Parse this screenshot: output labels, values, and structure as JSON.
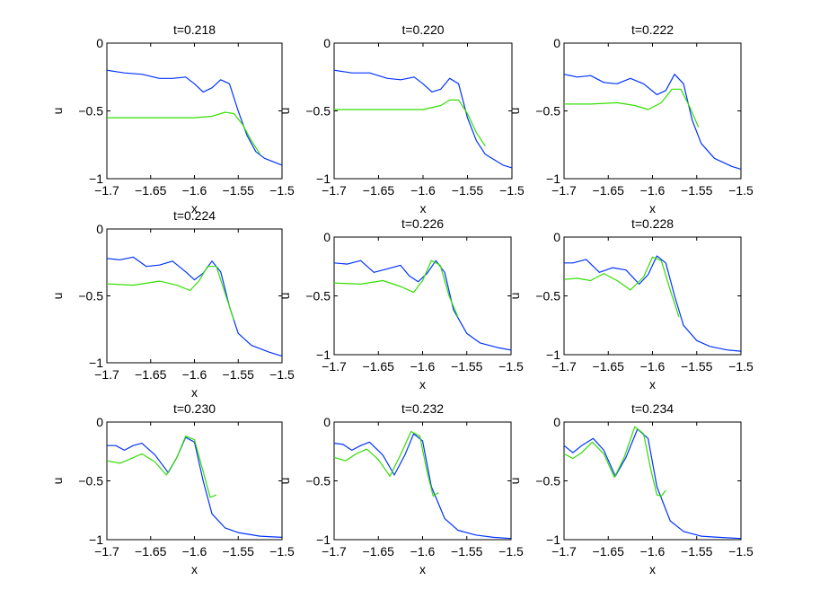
{
  "chart_data": [
    {
      "type": "line",
      "title": "t=0.218",
      "xlabel": "x",
      "ylabel": "u",
      "xlim": [
        -1.7,
        -1.5
      ],
      "ylim": [
        -1,
        0
      ],
      "xticks": [
        "-1.7",
        "-1.65",
        "-1.6",
        "-1.55",
        "-1.5"
      ],
      "yticks": [
        "0",
        "-0.5",
        "-1"
      ],
      "series": [
        {
          "color": "#0033ff",
          "x": [
            -1.7,
            -1.68,
            -1.66,
            -1.64,
            -1.625,
            -1.61,
            -1.6,
            -1.59,
            -1.58,
            -1.57,
            -1.56,
            -1.55,
            -1.54,
            -1.53,
            -1.52,
            -1.5
          ],
          "y": [
            -0.2,
            -0.22,
            -0.23,
            -0.26,
            -0.26,
            -0.25,
            -0.3,
            -0.36,
            -0.33,
            -0.27,
            -0.3,
            -0.5,
            -0.68,
            -0.8,
            -0.85,
            -0.9
          ]
        },
        {
          "color": "#33dd00",
          "x": [
            -1.7,
            -1.65,
            -1.6,
            -1.58,
            -1.565,
            -1.555,
            -1.545,
            -1.535,
            -1.525
          ],
          "y": [
            -0.55,
            -0.55,
            -0.55,
            -0.54,
            -0.51,
            -0.52,
            -0.6,
            -0.72,
            -0.82
          ]
        }
      ]
    },
    {
      "type": "line",
      "title": "t=0.220",
      "xlabel": "x",
      "ylabel": "u",
      "xlim": [
        -1.7,
        -1.5
      ],
      "ylim": [
        -1,
        0
      ],
      "xticks": [
        "-1.7",
        "-1.65",
        "-1.6",
        "-1.55",
        "-1.5"
      ],
      "yticks": [
        "0",
        "-0.5",
        "-1"
      ],
      "series": [
        {
          "color": "#0033ff",
          "x": [
            -1.7,
            -1.68,
            -1.66,
            -1.64,
            -1.625,
            -1.61,
            -1.6,
            -1.59,
            -1.58,
            -1.57,
            -1.56,
            -1.55,
            -1.54,
            -1.53,
            -1.51,
            -1.5
          ],
          "y": [
            -0.2,
            -0.22,
            -0.22,
            -0.26,
            -0.27,
            -0.25,
            -0.3,
            -0.36,
            -0.34,
            -0.26,
            -0.3,
            -0.55,
            -0.72,
            -0.82,
            -0.9,
            -0.92
          ]
        },
        {
          "color": "#33dd00",
          "x": [
            -1.7,
            -1.65,
            -1.6,
            -1.58,
            -1.57,
            -1.56,
            -1.55,
            -1.54,
            -1.53
          ],
          "y": [
            -0.49,
            -0.49,
            -0.49,
            -0.46,
            -0.42,
            -0.42,
            -0.52,
            -0.66,
            -0.76
          ]
        }
      ]
    },
    {
      "type": "line",
      "title": "t=0.222",
      "xlabel": "x",
      "ylabel": "u",
      "xlim": [
        -1.7,
        -1.5
      ],
      "ylim": [
        -1,
        0
      ],
      "xticks": [
        "-1.7",
        "-1.65",
        "-1.6",
        "-1.55",
        "-1.5"
      ],
      "yticks": [
        "0",
        "-0.5",
        "-1"
      ],
      "series": [
        {
          "color": "#0033ff",
          "x": [
            -1.7,
            -1.685,
            -1.67,
            -1.655,
            -1.64,
            -1.625,
            -1.61,
            -1.595,
            -1.585,
            -1.575,
            -1.565,
            -1.555,
            -1.545,
            -1.53,
            -1.51,
            -1.5
          ],
          "y": [
            -0.23,
            -0.25,
            -0.24,
            -0.29,
            -0.3,
            -0.26,
            -0.3,
            -0.38,
            -0.35,
            -0.23,
            -0.3,
            -0.57,
            -0.74,
            -0.85,
            -0.91,
            -0.93
          ]
        },
        {
          "color": "#33dd00",
          "x": [
            -1.7,
            -1.67,
            -1.64,
            -1.62,
            -1.605,
            -1.59,
            -1.578,
            -1.568,
            -1.558,
            -1.548
          ],
          "y": [
            -0.45,
            -0.45,
            -0.44,
            -0.46,
            -0.49,
            -0.44,
            -0.34,
            -0.34,
            -0.47,
            -0.62
          ]
        }
      ]
    },
    {
      "type": "line",
      "title": "t=0.224",
      "xlabel": "x",
      "ylabel": "u",
      "xlim": [
        -1.7,
        -1.5
      ],
      "ylim": [
        -1,
        0
      ],
      "xticks": [
        "-1.7",
        "-1.65",
        "-1.6",
        "-1.55",
        "-1.5"
      ],
      "yticks": [
        "0",
        "-0.5",
        "-1"
      ],
      "series": [
        {
          "color": "#0033ff",
          "x": [
            -1.7,
            -1.685,
            -1.67,
            -1.655,
            -1.64,
            -1.625,
            -1.61,
            -1.6,
            -1.59,
            -1.58,
            -1.57,
            -1.56,
            -1.55,
            -1.535,
            -1.515,
            -1.5
          ],
          "y": [
            -0.22,
            -0.23,
            -0.21,
            -0.28,
            -0.27,
            -0.24,
            -0.32,
            -0.38,
            -0.33,
            -0.24,
            -0.32,
            -0.58,
            -0.78,
            -0.87,
            -0.92,
            -0.95
          ]
        },
        {
          "color": "#33dd00",
          "x": [
            -1.7,
            -1.67,
            -1.64,
            -1.62,
            -1.605,
            -1.595,
            -1.585,
            -1.575,
            -1.565,
            -1.555
          ],
          "y": [
            -0.41,
            -0.42,
            -0.39,
            -0.42,
            -0.46,
            -0.39,
            -0.28,
            -0.28,
            -0.48,
            -0.68
          ]
        }
      ]
    },
    {
      "type": "line",
      "title": "t=0.226",
      "xlabel": "x",
      "ylabel": "u",
      "xlim": [
        -1.7,
        -1.5
      ],
      "ylim": [
        -1,
        0
      ],
      "xticks": [
        "-1.7",
        "-1.65",
        "-1.6",
        "-1.55",
        "-1.5"
      ],
      "yticks": [
        "0",
        "-0.5",
        "-1"
      ],
      "series": [
        {
          "color": "#0033ff",
          "x": [
            -1.7,
            -1.685,
            -1.67,
            -1.655,
            -1.64,
            -1.625,
            -1.615,
            -1.605,
            -1.595,
            -1.585,
            -1.575,
            -1.565,
            -1.55,
            -1.535,
            -1.515,
            -1.5
          ],
          "y": [
            -0.22,
            -0.23,
            -0.2,
            -0.3,
            -0.27,
            -0.24,
            -0.33,
            -0.38,
            -0.31,
            -0.2,
            -0.3,
            -0.62,
            -0.82,
            -0.9,
            -0.94,
            -0.96
          ]
        },
        {
          "color": "#33dd00",
          "x": [
            -1.7,
            -1.67,
            -1.645,
            -1.625,
            -1.61,
            -1.6,
            -1.59,
            -1.58,
            -1.57,
            -1.56
          ],
          "y": [
            -0.39,
            -0.4,
            -0.37,
            -0.42,
            -0.47,
            -0.37,
            -0.2,
            -0.24,
            -0.5,
            -0.68
          ]
        }
      ]
    },
    {
      "type": "line",
      "title": "t=0.228",
      "xlabel": "x",
      "ylabel": "u",
      "xlim": [
        -1.7,
        -1.5
      ],
      "ylim": [
        -1,
        0
      ],
      "xticks": [
        "-1.7",
        "-1.65",
        "-1.6",
        "-1.55",
        "-1.5"
      ],
      "yticks": [
        "0",
        "-0.5",
        "-1"
      ],
      "series": [
        {
          "color": "#0033ff",
          "x": [
            -1.7,
            -1.69,
            -1.675,
            -1.66,
            -1.645,
            -1.63,
            -1.615,
            -1.605,
            -1.595,
            -1.585,
            -1.575,
            -1.565,
            -1.55,
            -1.535,
            -1.515,
            -1.5
          ],
          "y": [
            -0.22,
            -0.22,
            -0.19,
            -0.3,
            -0.26,
            -0.28,
            -0.4,
            -0.32,
            -0.16,
            -0.22,
            -0.5,
            -0.75,
            -0.88,
            -0.93,
            -0.96,
            -0.97
          ]
        },
        {
          "color": "#33dd00",
          "x": [
            -1.7,
            -1.685,
            -1.67,
            -1.655,
            -1.64,
            -1.625,
            -1.61,
            -1.6,
            -1.59,
            -1.58,
            -1.57
          ],
          "y": [
            -0.36,
            -0.35,
            -0.37,
            -0.31,
            -0.37,
            -0.45,
            -0.34,
            -0.17,
            -0.2,
            -0.45,
            -0.68
          ]
        }
      ]
    },
    {
      "type": "line",
      "title": "t=0.230",
      "xlabel": "x",
      "ylabel": "u",
      "xlim": [
        -1.7,
        -1.5
      ],
      "ylim": [
        -1,
        0
      ],
      "xticks": [
        "-1.7",
        "-1.65",
        "-1.6",
        "-1.55",
        "-1.5"
      ],
      "yticks": [
        "0",
        "-0.5",
        "-1"
      ],
      "series": [
        {
          "color": "#0033ff",
          "x": [
            -1.7,
            -1.69,
            -1.68,
            -1.67,
            -1.66,
            -1.645,
            -1.63,
            -1.62,
            -1.61,
            -1.6,
            -1.59,
            -1.58,
            -1.565,
            -1.55,
            -1.525,
            -1.5
          ],
          "y": [
            -0.2,
            -0.2,
            -0.24,
            -0.2,
            -0.18,
            -0.28,
            -0.43,
            -0.3,
            -0.13,
            -0.17,
            -0.5,
            -0.78,
            -0.9,
            -0.94,
            -0.97,
            -0.98
          ]
        },
        {
          "color": "#33dd00",
          "x": [
            -1.7,
            -1.685,
            -1.672,
            -1.66,
            -1.645,
            -1.632,
            -1.62,
            -1.61,
            -1.6,
            -1.59,
            -1.582,
            -1.575
          ],
          "y": [
            -0.33,
            -0.35,
            -0.31,
            -0.27,
            -0.34,
            -0.45,
            -0.3,
            -0.12,
            -0.15,
            -0.42,
            -0.64,
            -0.62
          ]
        }
      ]
    },
    {
      "type": "line",
      "title": "t=0.232",
      "xlabel": "x",
      "ylabel": "u",
      "xlim": [
        -1.7,
        -1.5
      ],
      "ylim": [
        -1,
        0
      ],
      "xticks": [
        "-1.7",
        "-1.65",
        "-1.6",
        "-1.55",
        "-1.5"
      ],
      "yticks": [
        "0",
        "-0.5",
        "-1"
      ],
      "series": [
        {
          "color": "#0033ff",
          "x": [
            -1.7,
            -1.69,
            -1.68,
            -1.67,
            -1.66,
            -1.645,
            -1.632,
            -1.62,
            -1.61,
            -1.6,
            -1.59,
            -1.575,
            -1.56,
            -1.54,
            -1.52,
            -1.5
          ],
          "y": [
            -0.18,
            -0.19,
            -0.24,
            -0.2,
            -0.17,
            -0.28,
            -0.45,
            -0.28,
            -0.1,
            -0.16,
            -0.55,
            -0.82,
            -0.92,
            -0.96,
            -0.98,
            -0.99
          ]
        },
        {
          "color": "#33dd00",
          "x": [
            -1.7,
            -1.687,
            -1.675,
            -1.663,
            -1.65,
            -1.637,
            -1.625,
            -1.613,
            -1.603,
            -1.595,
            -1.588,
            -1.582
          ],
          "y": [
            -0.3,
            -0.33,
            -0.27,
            -0.23,
            -0.32,
            -0.46,
            -0.28,
            -0.08,
            -0.12,
            -0.42,
            -0.63,
            -0.6
          ]
        }
      ]
    },
    {
      "type": "line",
      "title": "t=0.234",
      "xlabel": "x",
      "ylabel": "u",
      "xlim": [
        -1.7,
        -1.5
      ],
      "ylim": [
        -1,
        0
      ],
      "xticks": [
        "-1.7",
        "-1.65",
        "-1.6",
        "-1.55",
        "-1.5"
      ],
      "yticks": [
        "0",
        "-0.5",
        "-1"
      ],
      "series": [
        {
          "color": "#0033ff",
          "x": [
            -1.7,
            -1.69,
            -1.68,
            -1.667,
            -1.655,
            -1.642,
            -1.63,
            -1.617,
            -1.605,
            -1.595,
            -1.58,
            -1.565,
            -1.545,
            -1.525,
            -1.5
          ],
          "y": [
            -0.2,
            -0.26,
            -0.2,
            -0.14,
            -0.24,
            -0.46,
            -0.3,
            -0.06,
            -0.14,
            -0.55,
            -0.84,
            -0.93,
            -0.97,
            -0.98,
            -0.99
          ]
        },
        {
          "color": "#33dd00",
          "x": [
            -1.7,
            -1.69,
            -1.68,
            -1.668,
            -1.655,
            -1.643,
            -1.632,
            -1.62,
            -1.61,
            -1.602,
            -1.595,
            -1.59,
            -1.585
          ],
          "y": [
            -0.27,
            -0.31,
            -0.26,
            -0.17,
            -0.27,
            -0.47,
            -0.3,
            -0.04,
            -0.1,
            -0.4,
            -0.62,
            -0.63,
            -0.58
          ]
        }
      ]
    }
  ]
}
